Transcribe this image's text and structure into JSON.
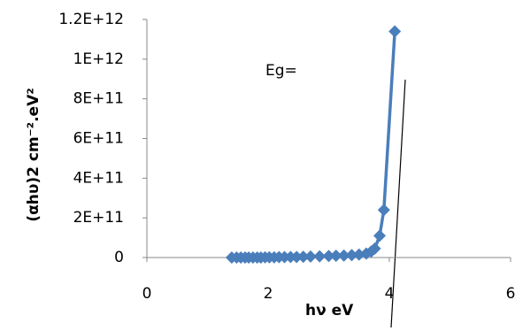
{
  "chart_data": {
    "type": "scatter",
    "ylabel": "(αhυ)2 cm⁻².eV²",
    "xlabel": "hν  eV",
    "annotation": "Eg=",
    "x": [
      1.4,
      1.48,
      1.55,
      1.62,
      1.68,
      1.75,
      1.82,
      1.88,
      1.95,
      2.02,
      2.1,
      2.18,
      2.27,
      2.37,
      2.47,
      2.58,
      2.7,
      2.85,
      3.0,
      3.12,
      3.25,
      3.38,
      3.5,
      3.62,
      3.7,
      3.76,
      3.84,
      3.91,
      4.09
    ],
    "series": [
      {
        "color": "#4a7ebb",
        "values": [
          0,
          0,
          0,
          0,
          0,
          0,
          0,
          0,
          1000000000,
          1000000000,
          1000000000,
          2000000000,
          2000000000,
          3000000000,
          3000000000,
          4000000000,
          5000000000,
          6000000000,
          8000000000,
          9000000000,
          10000000000,
          12000000000,
          15000000000,
          20000000000,
          30000000000,
          45000000000,
          110000000000,
          240000000000,
          1140000000000
        ]
      }
    ],
    "xlim": [
      0,
      6
    ],
    "xticks": [
      0,
      2,
      4,
      6
    ],
    "ylim": [
      0,
      1200000000000
    ],
    "yticks": [
      0,
      {
        "value": 200000000000,
        "label": "2E+11"
      },
      {
        "value": 400000000000,
        "label": "4E+11"
      },
      {
        "value": 600000000000,
        "label": "6E+11"
      },
      {
        "value": 800000000000,
        "label": "8E+11"
      },
      {
        "value": 1000000000000,
        "label": "1E+12"
      },
      {
        "value": 1200000000000,
        "label": "1.2E+12"
      }
    ]
  }
}
